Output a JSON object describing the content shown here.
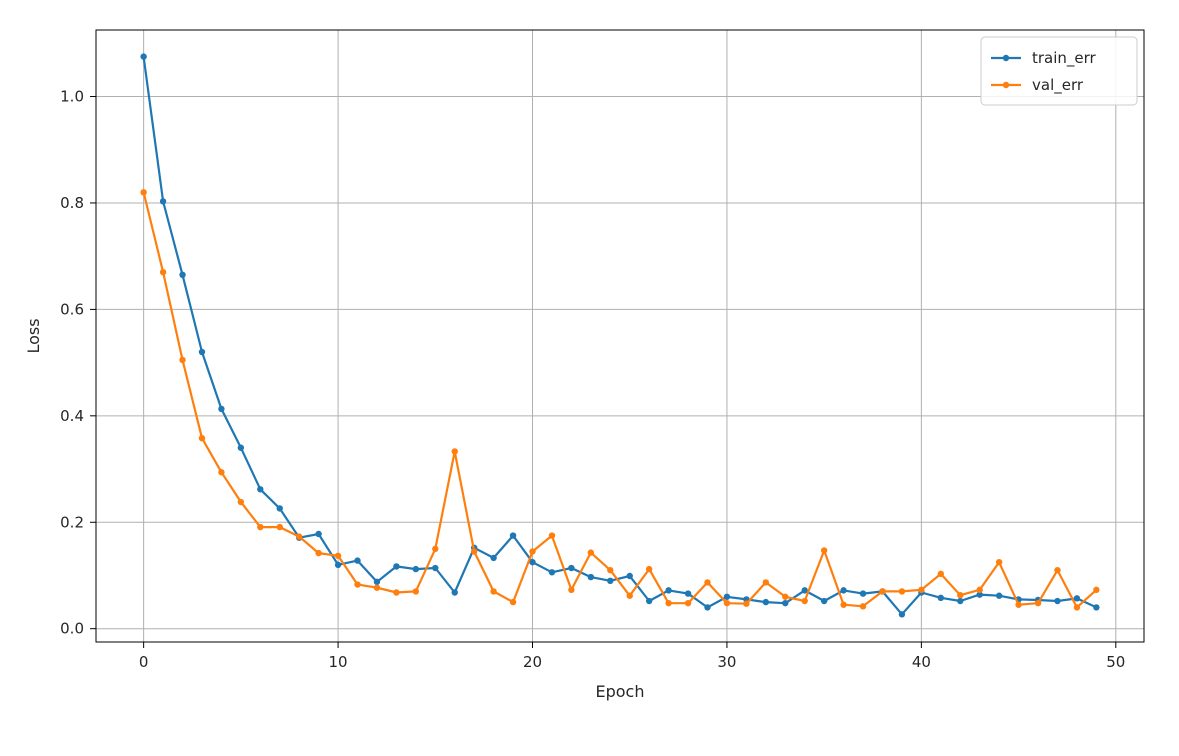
{
  "chart_data": {
    "type": "line",
    "title": "",
    "xlabel": "Epoch",
    "ylabel": "Loss",
    "xlim": [
      -2.45,
      51.45
    ],
    "ylim": [
      -0.025,
      1.125
    ],
    "xticks": [
      0,
      10,
      20,
      30,
      40,
      50
    ],
    "yticks": [
      0.0,
      0.2,
      0.4,
      0.6,
      0.8,
      1.0
    ],
    "xtick_labels": [
      "0",
      "10",
      "20",
      "30",
      "40",
      "50"
    ],
    "ytick_labels": [
      "0.0",
      "0.2",
      "0.4",
      "0.6",
      "0.8",
      "1.0"
    ],
    "grid": true,
    "legend_position": "top-right",
    "x": [
      0,
      1,
      2,
      3,
      4,
      5,
      6,
      7,
      8,
      9,
      10,
      11,
      12,
      13,
      14,
      15,
      16,
      17,
      18,
      19,
      20,
      21,
      22,
      23,
      24,
      25,
      26,
      27,
      28,
      29,
      30,
      31,
      32,
      33,
      34,
      35,
      36,
      37,
      38,
      39,
      40,
      41,
      42,
      43,
      44,
      45,
      46,
      47,
      48,
      49
    ],
    "series": [
      {
        "name": "train_err",
        "color": "#1f77b4",
        "values": [
          1.075,
          0.803,
          0.665,
          0.52,
          0.413,
          0.34,
          0.262,
          0.226,
          0.171,
          0.178,
          0.12,
          0.128,
          0.088,
          0.117,
          0.112,
          0.114,
          0.068,
          0.152,
          0.133,
          0.175,
          0.125,
          0.106,
          0.114,
          0.097,
          0.09,
          0.099,
          0.052,
          0.072,
          0.066,
          0.04,
          0.06,
          0.055,
          0.05,
          0.048,
          0.072,
          0.052,
          0.072,
          0.066,
          0.07,
          0.027,
          0.068,
          0.058,
          0.052,
          0.064,
          0.062,
          0.055,
          0.054,
          0.052,
          0.057,
          0.04
        ]
      },
      {
        "name": "val_err",
        "color": "#ff7f0e",
        "values": [
          0.82,
          0.67,
          0.505,
          0.358,
          0.294,
          0.238,
          0.191,
          0.191,
          0.173,
          0.142,
          0.137,
          0.083,
          0.077,
          0.068,
          0.07,
          0.15,
          0.333,
          0.145,
          0.07,
          0.05,
          0.145,
          0.175,
          0.073,
          0.143,
          0.11,
          0.062,
          0.112,
          0.048,
          0.048,
          0.087,
          0.048,
          0.047,
          0.087,
          0.06,
          0.052,
          0.147,
          0.045,
          0.042,
          0.07,
          0.07,
          0.073,
          0.103,
          0.063,
          0.073,
          0.125,
          0.045,
          0.048,
          0.11,
          0.04,
          0.073
        ]
      }
    ]
  }
}
